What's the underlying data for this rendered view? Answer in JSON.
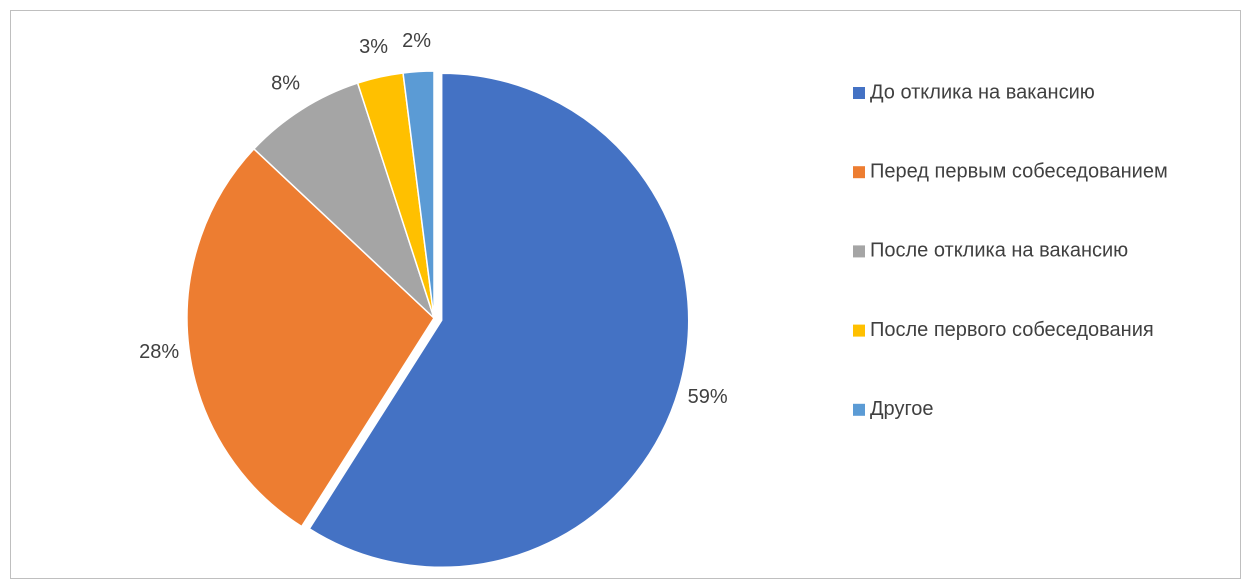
{
  "chart_data": {
    "type": "pie",
    "categories": [
      "До отклика на вакансию",
      "Перед первым собеседованием",
      "После отклика на вакансию",
      "После первого собеседования",
      "Другое"
    ],
    "values": [
      59,
      28,
      8,
      3,
      2
    ],
    "value_labels": [
      "59%",
      "28%",
      "8%",
      "3%",
      "2%"
    ],
    "colors": [
      "#4472c4",
      "#ed7d31",
      "#a5a5a5",
      "#ffc000",
      "#5b9bd5"
    ],
    "legend": "right"
  }
}
